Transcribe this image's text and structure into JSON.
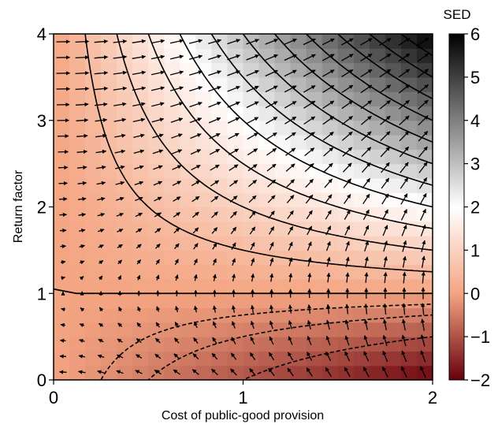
{
  "chart_data": {
    "type": "heatmap",
    "title": "",
    "xlabel": "Cost of public-good provision",
    "ylabel": "Return factor",
    "xlim": [
      0,
      2
    ],
    "ylim": [
      0,
      4
    ],
    "x_ticks": [
      "0",
      "1",
      "2"
    ],
    "y_ticks": [
      "0",
      "1",
      "2",
      "3",
      "4"
    ],
    "grid_x": 24,
    "grid_y": 24,
    "colorbar": {
      "title": "SED",
      "range": [
        -2,
        6
      ],
      "ticks": [
        "−2",
        "−1",
        "0",
        "1",
        "2",
        "3",
        "4",
        "5",
        "6"
      ],
      "colors": {
        "-2": "#67000d",
        "0": "#f4a582",
        "2": "#ffffff",
        "6": "#000000"
      }
    },
    "value_model": "SED ≈ x*(y − 1)",
    "contours": {
      "solid_levels": [
        0.5,
        1,
        1.5,
        2,
        2.5,
        3,
        3.5,
        4,
        4.5,
        5,
        5.5
      ],
      "zero_line_y": 1.0,
      "dashed_levels": [
        -0.25,
        -0.5,
        -1.0
      ],
      "line_color": "#000000"
    },
    "vector_field": {
      "present": true,
      "columns": 20,
      "rows": 22,
      "color": "#000000"
    }
  }
}
